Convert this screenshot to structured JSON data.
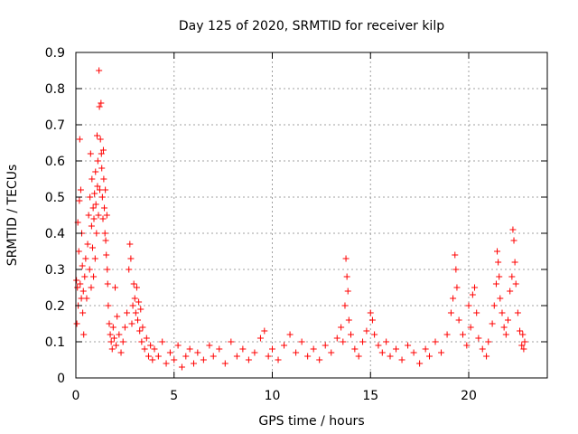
{
  "chart_data": {
    "type": "scatter",
    "title": "Day 125 of 2020, SRMTID for receiver kilp",
    "xlabel": "GPS time / hours",
    "ylabel": "SRMTID / TECUs",
    "xlim": [
      0,
      24
    ],
    "ylim": [
      0,
      0.9
    ],
    "xticks": [
      0,
      5,
      10,
      15,
      20
    ],
    "yticks": [
      0,
      0.1,
      0.2,
      0.3,
      0.4,
      0.5,
      0.6,
      0.7,
      0.8,
      0.9
    ],
    "grid": true,
    "marker": "+",
    "color": "#ff0000",
    "series": [
      {
        "name": "SRMTID",
        "points": [
          [
            0.03,
            0.27
          ],
          [
            0.05,
            0.15
          ],
          [
            0.08,
            0.25
          ],
          [
            0.1,
            0.43
          ],
          [
            0.12,
            0.2
          ],
          [
            0.15,
            0.35
          ],
          [
            0.18,
            0.49
          ],
          [
            0.2,
            0.66
          ],
          [
            0.22,
            0.26
          ],
          [
            0.25,
            0.52
          ],
          [
            0.28,
            0.22
          ],
          [
            0.3,
            0.4
          ],
          [
            0.33,
            0.31
          ],
          [
            0.35,
            0.18
          ],
          [
            0.38,
            0.24
          ],
          [
            0.4,
            0.12
          ],
          [
            0.45,
            0.28
          ],
          [
            0.5,
            0.33
          ],
          [
            0.55,
            0.22
          ],
          [
            0.6,
            0.37
          ],
          [
            0.65,
            0.45
          ],
          [
            0.7,
            0.3
          ],
          [
            0.72,
            0.5
          ],
          [
            0.75,
            0.62
          ],
          [
            0.78,
            0.25
          ],
          [
            0.8,
            0.42
          ],
          [
            0.82,
            0.55
          ],
          [
            0.85,
            0.36
          ],
          [
            0.88,
            0.47
          ],
          [
            0.9,
            0.28
          ],
          [
            0.92,
            0.44
          ],
          [
            0.95,
            0.51
          ],
          [
            0.98,
            0.33
          ],
          [
            1.0,
            0.57
          ],
          [
            1.02,
            0.48
          ],
          [
            1.05,
            0.4
          ],
          [
            1.08,
            0.67
          ],
          [
            1.1,
            0.53
          ],
          [
            1.12,
            0.6
          ],
          [
            1.15,
            0.45
          ],
          [
            1.18,
            0.85
          ],
          [
            1.2,
            0.75
          ],
          [
            1.22,
            0.52
          ],
          [
            1.25,
            0.66
          ],
          [
            1.28,
            0.76
          ],
          [
            1.3,
            0.62
          ],
          [
            1.32,
            0.58
          ],
          [
            1.35,
            0.5
          ],
          [
            1.38,
            0.44
          ],
          [
            1.4,
            0.63
          ],
          [
            1.42,
            0.55
          ],
          [
            1.45,
            0.47
          ],
          [
            1.48,
            0.4
          ],
          [
            1.5,
            0.52
          ],
          [
            1.52,
            0.38
          ],
          [
            1.55,
            0.34
          ],
          [
            1.58,
            0.45
          ],
          [
            1.6,
            0.3
          ],
          [
            1.62,
            0.26
          ],
          [
            1.65,
            0.2
          ],
          [
            1.7,
            0.15
          ],
          [
            1.75,
            0.12
          ],
          [
            1.8,
            0.1
          ],
          [
            1.85,
            0.08
          ],
          [
            1.9,
            0.14
          ],
          [
            1.95,
            0.11
          ],
          [
            2.0,
            0.25
          ],
          [
            2.05,
            0.09
          ],
          [
            2.1,
            0.17
          ],
          [
            2.2,
            0.12
          ],
          [
            2.3,
            0.07
          ],
          [
            2.4,
            0.1
          ],
          [
            2.5,
            0.14
          ],
          [
            2.6,
            0.18
          ],
          [
            2.7,
            0.3
          ],
          [
            2.75,
            0.37
          ],
          [
            2.8,
            0.33
          ],
          [
            2.85,
            0.15
          ],
          [
            2.9,
            0.2
          ],
          [
            2.95,
            0.26
          ],
          [
            3.0,
            0.22
          ],
          [
            3.05,
            0.18
          ],
          [
            3.1,
            0.25
          ],
          [
            3.15,
            0.16
          ],
          [
            3.2,
            0.21
          ],
          [
            3.25,
            0.13
          ],
          [
            3.3,
            0.19
          ],
          [
            3.35,
            0.1
          ],
          [
            3.4,
            0.14
          ],
          [
            3.5,
            0.08
          ],
          [
            3.6,
            0.11
          ],
          [
            3.7,
            0.06
          ],
          [
            3.8,
            0.09
          ],
          [
            3.9,
            0.05
          ],
          [
            4.0,
            0.08
          ],
          [
            4.2,
            0.06
          ],
          [
            4.4,
            0.1
          ],
          [
            4.6,
            0.04
          ],
          [
            4.8,
            0.07
          ],
          [
            5.0,
            0.05
          ],
          [
            5.2,
            0.09
          ],
          [
            5.4,
            0.03
          ],
          [
            5.6,
            0.06
          ],
          [
            5.8,
            0.08
          ],
          [
            6.0,
            0.04
          ],
          [
            6.2,
            0.07
          ],
          [
            6.5,
            0.05
          ],
          [
            6.8,
            0.09
          ],
          [
            7.0,
            0.06
          ],
          [
            7.3,
            0.08
          ],
          [
            7.6,
            0.04
          ],
          [
            7.9,
            0.1
          ],
          [
            8.2,
            0.06
          ],
          [
            8.5,
            0.08
          ],
          [
            8.8,
            0.05
          ],
          [
            9.1,
            0.07
          ],
          [
            9.4,
            0.11
          ],
          [
            9.6,
            0.13
          ],
          [
            9.8,
            0.06
          ],
          [
            10.0,
            0.08
          ],
          [
            10.3,
            0.05
          ],
          [
            10.6,
            0.09
          ],
          [
            10.9,
            0.12
          ],
          [
            11.2,
            0.07
          ],
          [
            11.5,
            0.1
          ],
          [
            11.8,
            0.06
          ],
          [
            12.1,
            0.08
          ],
          [
            12.4,
            0.05
          ],
          [
            12.7,
            0.09
          ],
          [
            13.0,
            0.07
          ],
          [
            13.3,
            0.11
          ],
          [
            13.5,
            0.14
          ],
          [
            13.6,
            0.1
          ],
          [
            13.7,
            0.2
          ],
          [
            13.75,
            0.33
          ],
          [
            13.8,
            0.28
          ],
          [
            13.85,
            0.24
          ],
          [
            13.9,
            0.16
          ],
          [
            14.0,
            0.12
          ],
          [
            14.2,
            0.08
          ],
          [
            14.4,
            0.06
          ],
          [
            14.6,
            0.1
          ],
          [
            14.8,
            0.13
          ],
          [
            15.0,
            0.18
          ],
          [
            15.1,
            0.16
          ],
          [
            15.2,
            0.12
          ],
          [
            15.4,
            0.09
          ],
          [
            15.6,
            0.07
          ],
          [
            15.8,
            0.1
          ],
          [
            16.0,
            0.06
          ],
          [
            16.3,
            0.08
          ],
          [
            16.6,
            0.05
          ],
          [
            16.9,
            0.09
          ],
          [
            17.2,
            0.07
          ],
          [
            17.5,
            0.04
          ],
          [
            17.8,
            0.08
          ],
          [
            18.0,
            0.06
          ],
          [
            18.3,
            0.1
          ],
          [
            18.6,
            0.07
          ],
          [
            18.9,
            0.12
          ],
          [
            19.1,
            0.18
          ],
          [
            19.2,
            0.22
          ],
          [
            19.3,
            0.34
          ],
          [
            19.35,
            0.3
          ],
          [
            19.4,
            0.25
          ],
          [
            19.5,
            0.16
          ],
          [
            19.7,
            0.12
          ],
          [
            19.9,
            0.09
          ],
          [
            20.0,
            0.2
          ],
          [
            20.1,
            0.14
          ],
          [
            20.2,
            0.23
          ],
          [
            20.3,
            0.25
          ],
          [
            20.4,
            0.18
          ],
          [
            20.5,
            0.11
          ],
          [
            20.7,
            0.08
          ],
          [
            20.9,
            0.06
          ],
          [
            21.0,
            0.1
          ],
          [
            21.2,
            0.15
          ],
          [
            21.3,
            0.2
          ],
          [
            21.4,
            0.26
          ],
          [
            21.45,
            0.35
          ],
          [
            21.5,
            0.32
          ],
          [
            21.55,
            0.28
          ],
          [
            21.6,
            0.22
          ],
          [
            21.7,
            0.18
          ],
          [
            21.8,
            0.14
          ],
          [
            21.9,
            0.12
          ],
          [
            22.0,
            0.16
          ],
          [
            22.1,
            0.24
          ],
          [
            22.2,
            0.28
          ],
          [
            22.25,
            0.41
          ],
          [
            22.3,
            0.38
          ],
          [
            22.35,
            0.32
          ],
          [
            22.4,
            0.26
          ],
          [
            22.5,
            0.18
          ],
          [
            22.6,
            0.13
          ],
          [
            22.7,
            0.09
          ],
          [
            22.75,
            0.12
          ],
          [
            22.8,
            0.08
          ],
          [
            22.85,
            0.1
          ]
        ]
      }
    ]
  }
}
